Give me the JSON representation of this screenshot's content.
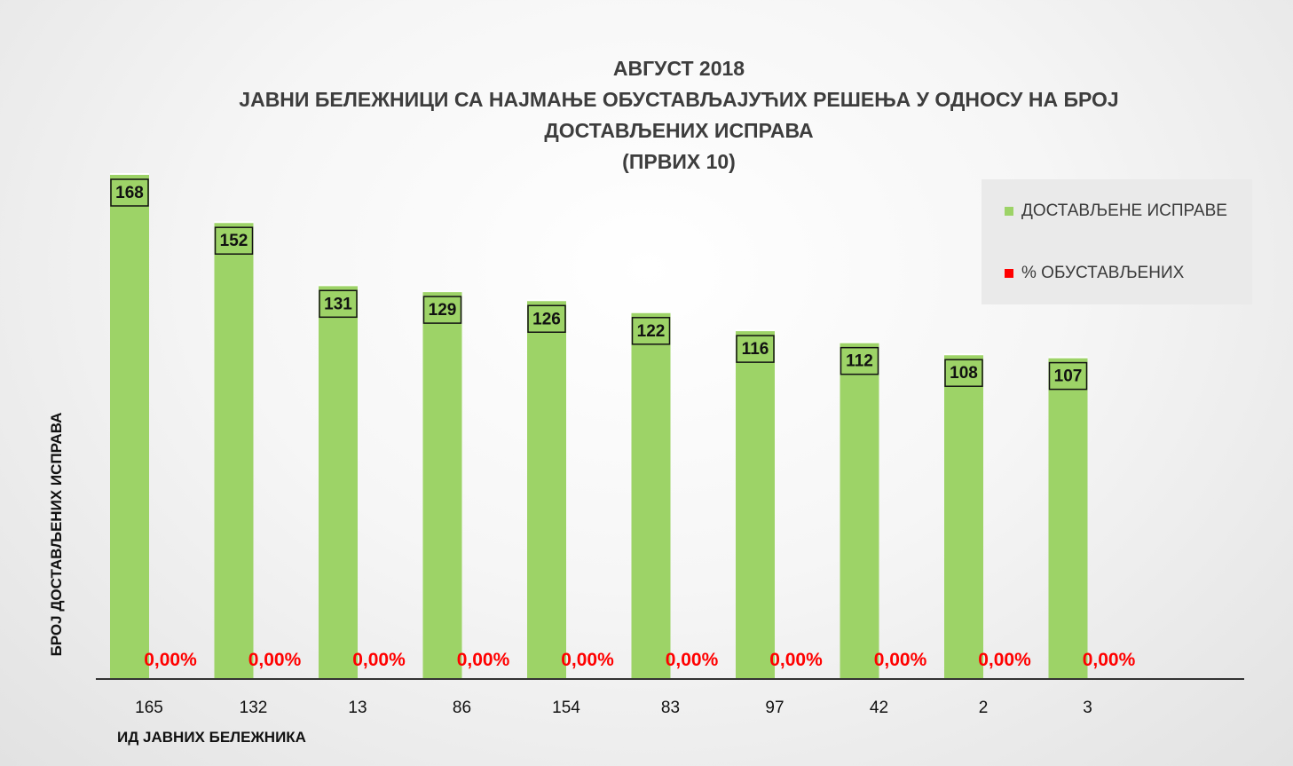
{
  "chart_data": {
    "type": "bar",
    "title_lines": [
      "АВГУСТ 2018",
      "ЈАВНИ БЕЛЕЖНИЦИ СА НАЈМАЊЕ ОБУСТАВЉАЈУЋИХ РЕШЕЊА У ОДНОСУ НА БРОЈ",
      "ДОСТАВЉЕНИХ ИСПРАВА",
      "(ПРВИХ 10)"
    ],
    "xlabel": "ИД ЈАВНИХ БЕЛЕЖНИКА",
    "ylabel": "БРОЈ ДОСТАВЉЕНИХ ИСПРАВА",
    "categories": [
      "165",
      "132",
      "13",
      "86",
      "154",
      "83",
      "97",
      "42",
      "2",
      "3"
    ],
    "series": [
      {
        "name": "ДОСТАВЉЕНЕ ИСПРАВЕ",
        "values": [
          168,
          152,
          131,
          129,
          126,
          122,
          116,
          112,
          108,
          107
        ],
        "color": "#9dd367"
      },
      {
        "name": "% ОБУСТАВЉЕНИХ",
        "values": [
          0,
          0,
          0,
          0,
          0,
          0,
          0,
          0,
          0,
          0
        ],
        "labels": [
          "0,00%",
          "0,00%",
          "0,00%",
          "0,00%",
          "0,00%",
          "0,00%",
          "0,00%",
          "0,00%",
          "0,00%",
          "0,00%"
        ],
        "color": "#ff0000"
      }
    ],
    "legend_position": "top-right",
    "grid": false
  }
}
